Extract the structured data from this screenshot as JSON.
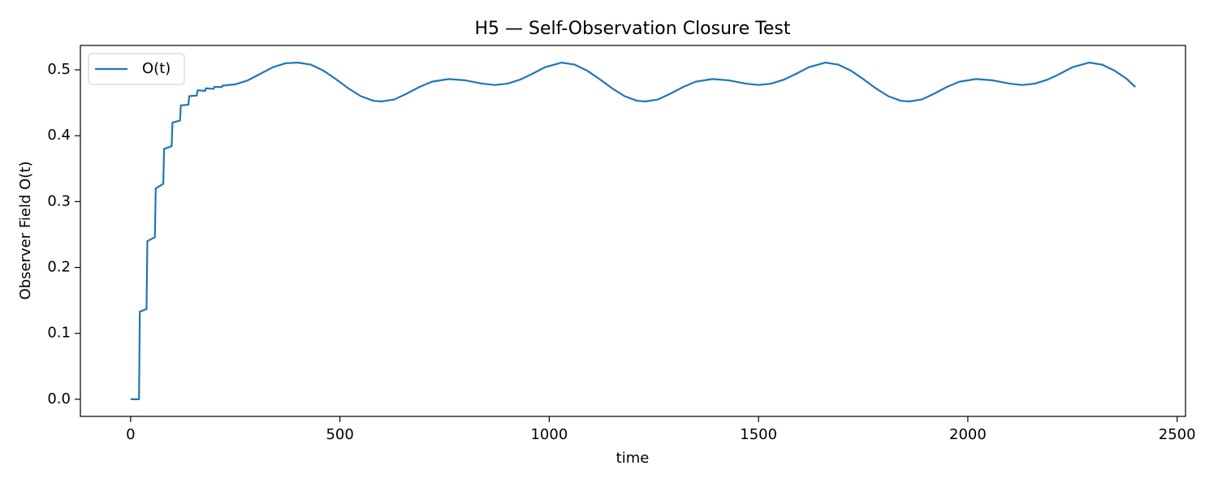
{
  "chart_data": {
    "type": "line",
    "title": "H5 — Self-Observation Closure Test",
    "xlabel": "time",
    "ylabel": "Observer Field O(t)",
    "legend": "upper left",
    "grid": false,
    "x": [
      0,
      20,
      22,
      38,
      40,
      58,
      60,
      78,
      80,
      98,
      100,
      118,
      120,
      138,
      140,
      158,
      160,
      178,
      180,
      198,
      200,
      218,
      220,
      250,
      280,
      310,
      340,
      370,
      400,
      430,
      460,
      490,
      520,
      550,
      580,
      600,
      630,
      660,
      690,
      720,
      760,
      800,
      840,
      870,
      900,
      930,
      960,
      990,
      1030,
      1060,
      1090,
      1120,
      1150,
      1180,
      1210,
      1230,
      1260,
      1290,
      1320,
      1350,
      1390,
      1430,
      1470,
      1500,
      1530,
      1560,
      1590,
      1620,
      1660,
      1690,
      1720,
      1750,
      1780,
      1810,
      1840,
      1860,
      1890,
      1920,
      1950,
      1980,
      2020,
      2060,
      2100,
      2130,
      2160,
      2190,
      2220,
      2250,
      2290,
      2320,
      2350,
      2380,
      2400
    ],
    "series": [
      {
        "name": "O(t)",
        "color": "#1f77b4",
        "values": [
          0,
          0,
          0.133,
          0.137,
          0.24,
          0.246,
          0.32,
          0.327,
          0.38,
          0.384,
          0.42,
          0.423,
          0.446,
          0.447,
          0.46,
          0.461,
          0.469,
          0.468,
          0.472,
          0.471,
          0.474,
          0.474,
          0.476,
          0.478,
          0.484,
          0.494,
          0.504,
          0.51,
          0.511,
          0.508,
          0.499,
          0.486,
          0.472,
          0.46,
          0.453,
          0.452,
          0.455,
          0.464,
          0.474,
          0.482,
          0.486,
          0.484,
          0.479,
          0.477,
          0.479,
          0.485,
          0.494,
          0.504,
          0.511,
          0.508,
          0.499,
          0.486,
          0.472,
          0.46,
          0.453,
          0.452,
          0.455,
          0.464,
          0.474,
          0.482,
          0.486,
          0.484,
          0.479,
          0.477,
          0.479,
          0.485,
          0.494,
          0.504,
          0.511,
          0.508,
          0.499,
          0.486,
          0.472,
          0.46,
          0.453,
          0.452,
          0.455,
          0.464,
          0.474,
          0.482,
          0.486,
          0.484,
          0.479,
          0.477,
          0.479,
          0.485,
          0.494,
          0.504,
          0.511,
          0.508,
          0.499,
          0.486,
          0.474
        ]
      }
    ],
    "xlim": [
      -120,
      2520
    ],
    "ylim": [
      -0.026,
      0.537
    ],
    "xticks": [
      0,
      500,
      1000,
      1500,
      2000,
      2500
    ],
    "yticks": [
      {
        "value": 0,
        "label": "0.0"
      },
      0.1,
      0.2,
      0.3,
      0.4,
      0.5
    ]
  }
}
